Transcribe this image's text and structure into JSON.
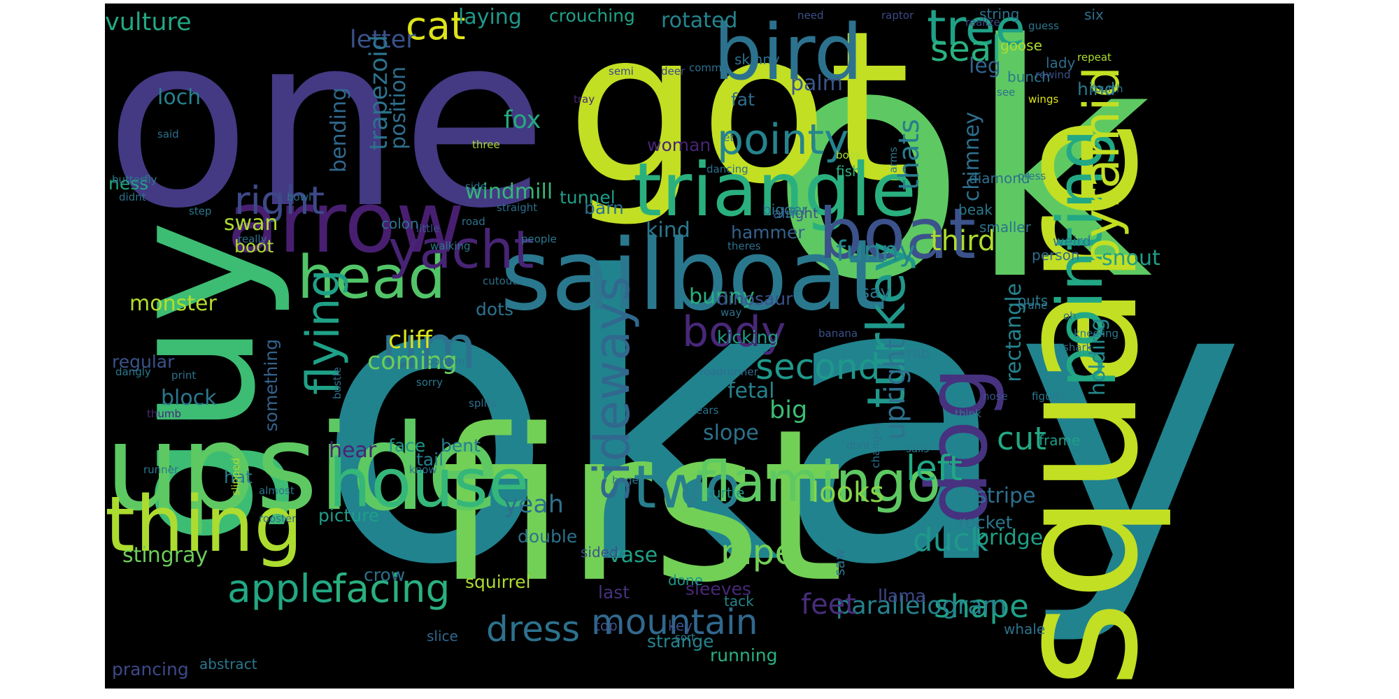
{
  "words": [
    {
      "t": "okay",
      "c": "#21838e"
    },
    {
      "t": "ok",
      "c": "#5ec962"
    },
    {
      "t": "got",
      "c": "#c2df23"
    },
    {
      "t": "one",
      "c": "#443983"
    },
    {
      "t": "first",
      "c": "#73d056"
    },
    {
      "t": "guy",
      "c": "#3dbc74"
    },
    {
      "t": "square",
      "c": "#c2df23"
    },
    {
      "t": "arrow",
      "c": "#481f70"
    },
    {
      "t": "upside",
      "c": "#5ec962"
    },
    {
      "t": "sailboat",
      "c": "#2a788e"
    },
    {
      "t": "bird",
      "c": "#2c728e"
    },
    {
      "t": "triangle",
      "c": "#2ab07f"
    },
    {
      "t": "boat",
      "c": "#3b528b"
    },
    {
      "t": "dog",
      "c": "#46327e"
    },
    {
      "t": "thing",
      "c": "#addc30"
    },
    {
      "t": "house",
      "c": "#35b779"
    },
    {
      "t": "pointing",
      "c": "#22a884"
    },
    {
      "t": "um",
      "c": "#2c728e"
    },
    {
      "t": "head",
      "c": "#52c569"
    },
    {
      "t": "pyramid",
      "c": "#c2df23"
    },
    {
      "t": "two",
      "c": "#277f8e"
    },
    {
      "t": "flamingo",
      "c": "#5ec962"
    },
    {
      "t": "yacht",
      "c": "#482475"
    },
    {
      "t": "sideways",
      "c": "#31688e"
    },
    {
      "t": "turkey",
      "c": "#1f988b"
    },
    {
      "t": "tree",
      "c": "#1fa187"
    },
    {
      "t": "flying",
      "c": "#1fa187"
    },
    {
      "t": "pointy",
      "c": "#25848e"
    },
    {
      "t": "body",
      "c": "#482878"
    },
    {
      "t": "right",
      "c": "#3e4989"
    },
    {
      "t": "cat",
      "c": "#dde318"
    },
    {
      "t": "apple",
      "c": "#22a884"
    },
    {
      "t": "facing",
      "c": "#2ab07f"
    },
    {
      "t": "seal",
      "c": "#2ab07f"
    },
    {
      "t": "dress",
      "c": "#2c728e"
    },
    {
      "t": "mountain",
      "c": "#31688e"
    },
    {
      "t": "second",
      "c": "#1f988b"
    },
    {
      "t": "left",
      "c": "#22a884"
    },
    {
      "t": "pipe",
      "c": "#73d056"
    },
    {
      "t": "shape",
      "c": "#1fa187"
    },
    {
      "t": "duck",
      "c": "#1f988b"
    },
    {
      "t": "cut",
      "c": "#22a884"
    },
    {
      "t": "looks",
      "c": "#86d549"
    },
    {
      "t": "funny",
      "c": "#25848e"
    },
    {
      "t": "upright",
      "c": "#2c728e"
    },
    {
      "t": "parallelogram",
      "c": "#26828e"
    },
    {
      "t": "feet",
      "c": "#472d7b"
    },
    {
      "t": "coming",
      "c": "#6ccd5a"
    },
    {
      "t": "third",
      "c": "#addc30"
    },
    {
      "t": "letter",
      "c": "#3b528b"
    },
    {
      "t": "vulture",
      "c": "#22a884"
    },
    {
      "t": "thats",
      "c": "#287d8e"
    },
    {
      "t": "position",
      "c": "#2e6f8e"
    },
    {
      "t": "fox",
      "c": "#25ab82"
    },
    {
      "t": "palm",
      "c": "#39568c"
    },
    {
      "t": "leg",
      "c": "#33638d"
    },
    {
      "t": "chimney",
      "c": "#2e6f8e"
    },
    {
      "t": "holding",
      "c": "#23898e"
    },
    {
      "t": "rectangle",
      "c": "#25848e"
    },
    {
      "t": "trapezoid",
      "c": "#2c728e"
    },
    {
      "t": "bending",
      "c": "#31688e"
    },
    {
      "t": "laying",
      "c": "#1f988b"
    },
    {
      "t": "rotated",
      "c": "#25848e"
    },
    {
      "t": "crouching",
      "c": "#1fa187"
    },
    {
      "t": "loch",
      "c": "#26828e"
    },
    {
      "t": "kind",
      "c": "#2a788e"
    },
    {
      "t": "big",
      "c": "#3dbc74"
    },
    {
      "t": "hammer",
      "c": "#33638d"
    },
    {
      "t": "fetal",
      "c": "#26828e"
    },
    {
      "t": "slope",
      "c": "#2c728e"
    },
    {
      "t": "hear",
      "c": "#482475"
    },
    {
      "t": "block",
      "c": "#2a788e"
    },
    {
      "t": "cliff",
      "c": "#dde318"
    },
    {
      "t": "monster",
      "c": "#b5de2b"
    },
    {
      "t": "stingray",
      "c": "#6ccd5a"
    },
    {
      "t": "windmill",
      "c": "#35b779"
    },
    {
      "t": "barn",
      "c": "#2c728e"
    },
    {
      "t": "tunnel",
      "c": "#1f9e89"
    },
    {
      "t": "bunny",
      "c": "#2ab07f"
    },
    {
      "t": "swan",
      "c": "#addc30"
    },
    {
      "t": "snout",
      "c": "#1f9e89"
    },
    {
      "t": "stripe",
      "c": "#2e6f8e"
    },
    {
      "t": "bridge",
      "c": "#1fa187"
    },
    {
      "t": "say",
      "c": "#2a788e"
    },
    {
      "t": "yeah",
      "c": "#2e6f8e"
    },
    {
      "t": "vase",
      "c": "#1fa187"
    },
    {
      "t": "squirrel",
      "c": "#addc30"
    },
    {
      "t": "crow",
      "c": "#2c728e"
    },
    {
      "t": "picture",
      "c": "#1f9e89"
    },
    {
      "t": "something",
      "c": "#33638d"
    },
    {
      "t": "regular",
      "c": "#3b528b"
    },
    {
      "t": "kicking",
      "c": "#1f9e89"
    },
    {
      "t": "dinosaur",
      "c": "#3b528b"
    },
    {
      "t": "woman",
      "c": "#482475"
    },
    {
      "t": "strange",
      "c": "#25848e"
    },
    {
      "t": "llama",
      "c": "#3e4989"
    },
    {
      "t": "ness",
      "c": "#22a884"
    },
    {
      "t": "boot",
      "c": "#addc30"
    },
    {
      "t": "dots",
      "c": "#2c728e"
    },
    {
      "t": "tail",
      "c": "#26828e"
    },
    {
      "t": "hat",
      "c": "#287d8e"
    },
    {
      "t": "bent",
      "c": "#287d8e"
    },
    {
      "t": "face",
      "c": "#1f988b"
    },
    {
      "t": "turtle",
      "c": "#1f988b"
    },
    {
      "t": "frame",
      "c": "#1f9e89"
    },
    {
      "t": "hind",
      "c": "#2a788e"
    },
    {
      "t": "abstract",
      "c": "#2a788e"
    },
    {
      "t": "slice",
      "c": "#31688e"
    },
    {
      "t": "running",
      "c": "#2ab07f"
    },
    {
      "t": "prancing",
      "c": "#3e4989"
    },
    {
      "t": "sleeves",
      "c": "#482878"
    },
    {
      "t": "tack",
      "c": "#25848e"
    },
    {
      "t": "rocket",
      "c": "#2a788e"
    },
    {
      "t": "whale",
      "c": "#2c728e"
    },
    {
      "t": "sided",
      "c": "#3b528b"
    },
    {
      "t": "double",
      "c": "#2c728e"
    },
    {
      "t": "done",
      "c": "#1f988b"
    },
    {
      "t": "key",
      "c": "#3b528b"
    },
    {
      "t": "last",
      "c": "#46327e"
    },
    {
      "t": "sort",
      "c": "#2a788e"
    },
    {
      "t": "top",
      "c": "#3b528b"
    },
    {
      "t": "saw",
      "c": "#2c728e"
    },
    {
      "t": "fat",
      "c": "#2e6f8e"
    },
    {
      "t": "skinny",
      "c": "#2c728e"
    },
    {
      "t": "lady",
      "c": "#2e6f8e"
    },
    {
      "t": "goose",
      "c": "#addc30"
    },
    {
      "t": "string",
      "c": "#2c728e"
    },
    {
      "t": "smaller",
      "c": "#2c728e"
    },
    {
      "t": "bunch",
      "c": "#2a788e"
    },
    {
      "t": "alright",
      "c": "#3b528b"
    },
    {
      "t": "colon",
      "c": "#2c728e"
    },
    {
      "t": "fish",
      "c": "#2ab07f"
    },
    {
      "t": "bigger",
      "c": "#2a788e"
    },
    {
      "t": "beak",
      "c": "#2a788e"
    },
    {
      "t": "six",
      "c": "#2e6f8e"
    },
    {
      "t": "diamond",
      "c": "#2c728e"
    },
    {
      "t": "weird",
      "c": "#2a788e"
    },
    {
      "t": "person",
      "c": "#2e6f8e"
    },
    {
      "t": "outs",
      "c": "#2a788e"
    },
    {
      "t": "crab",
      "c": "#2a788e"
    },
    {
      "t": "tray",
      "c": "#482878"
    },
    {
      "t": "deer",
      "c": "#3e4989"
    },
    {
      "t": "semi",
      "c": "#3e4989"
    },
    {
      "t": "comma",
      "c": "#2e6f8e"
    },
    {
      "t": "need",
      "c": "#3b528b"
    },
    {
      "t": "raptor",
      "c": "#3e4989"
    },
    {
      "t": "realize",
      "c": "#3e4989"
    },
    {
      "t": "guess",
      "c": "#2a788e"
    },
    {
      "t": "repeat",
      "c": "#addc30"
    },
    {
      "t": "fourth",
      "c": "#2a788e"
    },
    {
      "t": "rewind",
      "c": "#3b528b"
    },
    {
      "t": "see",
      "c": "#2e6f8e"
    },
    {
      "t": "wings",
      "c": "#dde318"
    },
    {
      "t": "said",
      "c": "#2e6f8e"
    },
    {
      "t": "let",
      "c": "#2a788e"
    },
    {
      "t": "three",
      "c": "#addc30"
    },
    {
      "t": "dancing",
      "c": "#2c728e"
    },
    {
      "t": "book",
      "c": "#addc30"
    },
    {
      "t": "arms",
      "c": "#2a788e"
    },
    {
      "t": "press",
      "c": "#2c728e"
    },
    {
      "t": "butterfly",
      "c": "#2a788e"
    },
    {
      "t": "didnt",
      "c": "#2c728e"
    },
    {
      "t": "bowl",
      "c": "#2e6f8e"
    },
    {
      "t": "side",
      "c": "#2a788e"
    },
    {
      "t": "step",
      "c": "#2a788e"
    },
    {
      "t": "straight",
      "c": "#2e6f8e"
    },
    {
      "t": "road",
      "c": "#2c728e"
    },
    {
      "t": "little",
      "c": "#3b528b"
    },
    {
      "t": "really",
      "c": "#2c728e"
    },
    {
      "t": "walking",
      "c": "#2a788e"
    },
    {
      "t": "people",
      "c": "#2a788e"
    },
    {
      "t": "theres",
      "c": "#2e6f8e"
    },
    {
      "t": "cutouts",
      "c": "#2c728e"
    },
    {
      "t": "way",
      "c": "#2e6f8e"
    },
    {
      "t": "crane",
      "c": "#2a788e"
    },
    {
      "t": "oh",
      "c": "#2c728e"
    },
    {
      "t": "kneeling",
      "c": "#2a788e"
    },
    {
      "t": "shark",
      "c": "#2e6f8e"
    },
    {
      "t": "banana",
      "c": "#3b528b"
    },
    {
      "t": "bottom",
      "c": "#2c728e"
    },
    {
      "t": "bustle",
      "c": "#2e6f8e"
    },
    {
      "t": "dangly",
      "c": "#2a788e"
    },
    {
      "t": "print",
      "c": "#2c728e"
    },
    {
      "t": "sorry",
      "c": "#2a788e"
    },
    {
      "t": "roadrunner",
      "c": "#2e6f8e"
    },
    {
      "t": "ears",
      "c": "#2c728e"
    },
    {
      "t": "think",
      "c": "#2a788e"
    },
    {
      "t": "nose",
      "c": "#3b528b"
    },
    {
      "t": "figure",
      "c": "#2a788e"
    },
    {
      "t": "thumb",
      "c": "#482878"
    },
    {
      "t": "slipped",
      "c": "#addc30"
    },
    {
      "t": "splits",
      "c": "#2c728e"
    },
    {
      "t": "know",
      "c": "#2e6f8e"
    },
    {
      "t": "huge",
      "c": "#2a788e"
    },
    {
      "t": "dont",
      "c": "#2c728e"
    },
    {
      "t": "sails",
      "c": "#2a788e"
    },
    {
      "t": "changed",
      "c": "#2c728e"
    },
    {
      "t": "runner",
      "c": "#2a788e"
    },
    {
      "t": "almost",
      "c": "#2c728e"
    },
    {
      "t": "rooster",
      "c": "#2e6f8e"
    }
  ]
}
